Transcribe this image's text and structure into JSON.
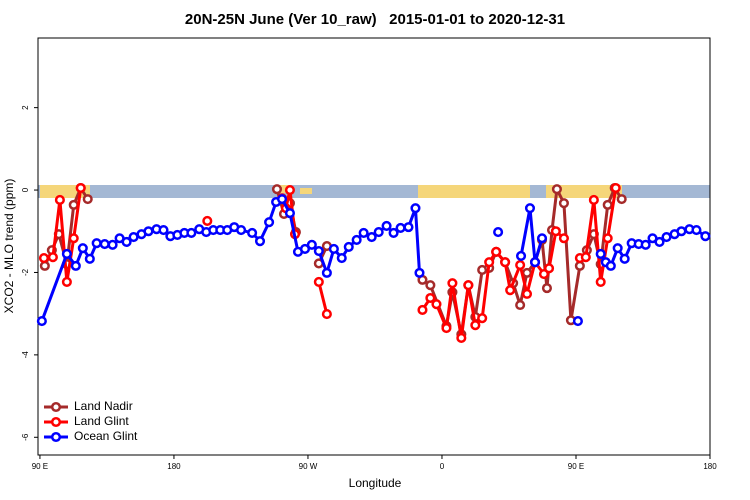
{
  "chart_data": {
    "type": "line",
    "title": "20N-25N June (Ver 10_raw)   2015-01-01 to 2020-12-31",
    "xlabel": "Longitude",
    "ylabel": "XCO2 - MLO trend (ppm)",
    "xlim": [
      88.7,
      540
    ],
    "ylim": [
      -6.43,
      3.69
    ],
    "xticks": [
      {
        "value": 90,
        "label": "90 E"
      },
      180,
      {
        "value": 270,
        "label": "90 W"
      },
      {
        "value": 360,
        "label": "0"
      },
      {
        "value": 450,
        "label": "90 E"
      },
      {
        "value": 540,
        "label": "180"
      }
    ],
    "yticks": [
      -6,
      -4,
      -2,
      0,
      2
    ],
    "legend": "bottom-left",
    "series": [
      {
        "name": "Land Nadir",
        "color": "#a52a2a",
        "x": [
          93.3,
          98.0,
          102.7,
          108.1,
          112.7,
          117.4,
          122.1,
          null,
          249.2,
          253.9,
          257.9,
          261.9,
          null,
          277.3,
          282.7,
          null,
          346.9,
          352.2,
          363.0,
          367.0,
          373.0,
          377.7,
          382.4,
          387.0,
          391.7,
          396.4,
          402.4,
          407.8,
          412.5,
          417.1,
          422.5,
          427.2,
          430.5,
          433.9,
          437.2,
          441.9,
          446.6,
          452.6,
          457.3,
          462.0,
          466.6,
          471.3,
          476.0,
          480.7
        ],
        "values": [
          -1.84,
          -1.46,
          -1.07,
          -1.8,
          -0.36,
          0.05,
          -0.22,
          null,
          0.02,
          -0.58,
          -0.32,
          -1.02,
          null,
          -1.78,
          -1.36,
          null,
          -2.18,
          -2.31,
          -3.3,
          -2.48,
          -3.5,
          -2.31,
          -3.08,
          -1.94,
          -1.89,
          -1.5,
          -1.75,
          -2.26,
          -2.79,
          -2.01,
          -1.75,
          -1.21,
          -2.38,
          -0.97,
          0.02,
          -0.32,
          -3.16,
          -1.84,
          -1.46,
          -1.07,
          -1.8,
          -0.36,
          0.05,
          -0.22
        ]
      },
      {
        "name": "Land Glint",
        "color": "#ff0000",
        "x": [
          92.7,
          98.7,
          103.4,
          108.1,
          112.7,
          117.4,
          null,
          202.4,
          null,
          252.6,
          255.2,
          257.9,
          261.3,
          null,
          277.3,
          282.7,
          null,
          346.9,
          352.2,
          356.3,
          363.0,
          367.0,
          373.0,
          377.7,
          382.4,
          387.0,
          391.7,
          396.4,
          402.4,
          405.8,
          412.5,
          417.1,
          422.5,
          428.5,
          431.9,
          436.5,
          441.9,
          null,
          452.6,
          456.6,
          462.0,
          466.6,
          471.3,
          476.7
        ],
        "values": [
          -1.65,
          -1.63,
          -0.24,
          -2.23,
          -1.17,
          0.05,
          null,
          -0.75,
          null,
          -0.2,
          -0.44,
          0.0,
          -1.07,
          null,
          -2.23,
          -3.01,
          null,
          -2.91,
          -2.62,
          -2.77,
          -3.35,
          -2.26,
          -3.59,
          -2.31,
          -3.28,
          -3.11,
          -1.75,
          -1.5,
          -1.75,
          -2.43,
          -1.82,
          -2.52,
          -1.75,
          -2.04,
          -1.9,
          -1.0,
          -1.17,
          null,
          -1.65,
          -1.63,
          -0.24,
          -2.23,
          -1.17,
          0.05
        ]
      },
      {
        "name": "Ocean Glint",
        "color": "#0000ff",
        "x": [
          91.3,
          108.1,
          114.1,
          118.8,
          123.5,
          128.1,
          133.5,
          138.8,
          143.5,
          148.2,
          152.9,
          158.2,
          162.9,
          168.3,
          173.0,
          177.6,
          182.3,
          187.0,
          191.7,
          197.0,
          201.7,
          206.4,
          211.1,
          215.8,
          220.5,
          225.1,
          232.5,
          237.8,
          243.9,
          248.6,
          252.6,
          257.9,
          263.3,
          268.0,
          272.6,
          277.3,
          282.7,
          287.4,
          292.7,
          297.4,
          302.7,
          307.4,
          312.8,
          317.5,
          322.8,
          327.5,
          332.2,
          337.5,
          342.2,
          344.9,
          null,
          397.7,
          null,
          413.1,
          419.1,
          422.5,
          427.2,
          null,
          451.3,
          null,
          466.6,
          470.0,
          473.4,
          478.0,
          482.7,
          487.4,
          492.1,
          496.8,
          501.4,
          506.1,
          510.8,
          516.2,
          520.8,
          526.2,
          530.9,
          536.9
        ],
        "values": [
          -3.18,
          -1.55,
          -1.84,
          -1.41,
          -1.67,
          -1.29,
          -1.31,
          -1.33,
          -1.17,
          -1.26,
          -1.14,
          -1.07,
          -1.0,
          -0.95,
          -0.97,
          -1.12,
          -1.09,
          -1.04,
          -1.04,
          -0.95,
          -1.02,
          -0.97,
          -0.97,
          -0.97,
          -0.9,
          -0.97,
          -1.04,
          -1.24,
          -0.78,
          -0.29,
          -0.22,
          -0.56,
          -1.5,
          -1.43,
          -1.33,
          -1.48,
          -2.01,
          -1.43,
          -1.65,
          -1.38,
          -1.21,
          -1.04,
          -1.14,
          -1.02,
          -0.87,
          -1.04,
          -0.92,
          -0.9,
          -0.44,
          -2.01,
          null,
          -1.02,
          null,
          -1.6,
          -0.44,
          -1.75,
          -1.17,
          null,
          -3.18,
          null,
          -1.55,
          -1.75,
          -1.84,
          -1.41,
          -1.67,
          -1.29,
          -1.31,
          -1.33,
          -1.17,
          -1.26,
          -1.14,
          -1.07,
          -1.0,
          -0.95,
          -0.97,
          -1.12
        ]
      }
    ]
  }
}
